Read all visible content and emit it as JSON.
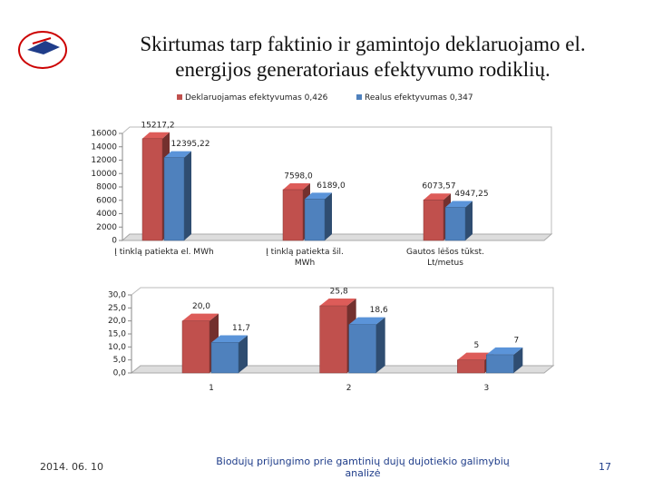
{
  "title": [
    "Skirtumas tarp faktinio ir gamintojo deklaruojamo el.",
    "energijos generatoriaus efektyvumo rodiklių."
  ],
  "chart_data": [
    {
      "type": "bar3d",
      "categories": [
        "Į tinklą patiekta el. MWh",
        "Į tinklą patiekta šil. MWh",
        "Gautos lėšos tūkst. Lt/metus"
      ],
      "series": [
        {
          "name": "Deklaruojamas efektyvumas 0,426",
          "color": "#c0504d",
          "values": [
            15217.2,
            7598.0,
            6073.57
          ],
          "value_labels": [
            "15217,2",
            "7598,0",
            "6073,57"
          ]
        },
        {
          "name": "Realus efektyvumas 0,347",
          "color": "#4f81bd",
          "values": [
            12395.22,
            6189.0,
            4947.25
          ],
          "value_labels": [
            "12395,22",
            "6189,0",
            "4947,25"
          ]
        }
      ],
      "ylim": [
        0,
        16000
      ],
      "yticks": [
        0,
        2000,
        4000,
        6000,
        8000,
        10000,
        12000,
        14000,
        16000
      ],
      "legend": "top"
    },
    {
      "type": "bar3d",
      "categories": [
        "1",
        "2",
        "3"
      ],
      "series": [
        {
          "color": "#c0504d",
          "values": [
            20.0,
            25.8,
            5
          ],
          "value_labels": [
            "20,0",
            "25,8",
            "5"
          ]
        },
        {
          "color": "#4f81bd",
          "values": [
            11.7,
            18.6,
            7
          ],
          "value_labels": [
            "11,7",
            "18,6",
            "7"
          ]
        }
      ],
      "ylim": [
        0,
        30
      ],
      "yticks": [
        {
          "value": 0,
          "label": "0,0"
        },
        {
          "value": 5,
          "label": "5,0"
        },
        {
          "value": 10,
          "label": "10,0"
        },
        {
          "value": 15,
          "label": "15,0"
        },
        {
          "value": 20,
          "label": "20,0"
        },
        {
          "value": 25,
          "label": "25,0"
        },
        {
          "value": 30,
          "label": "30,0"
        }
      ]
    }
  ],
  "footer": {
    "date": "2014. 06. 10",
    "text": "Biodujų prijungimo prie gamtinių dujų dujotiekio galimybių analizė",
    "page": "17"
  }
}
